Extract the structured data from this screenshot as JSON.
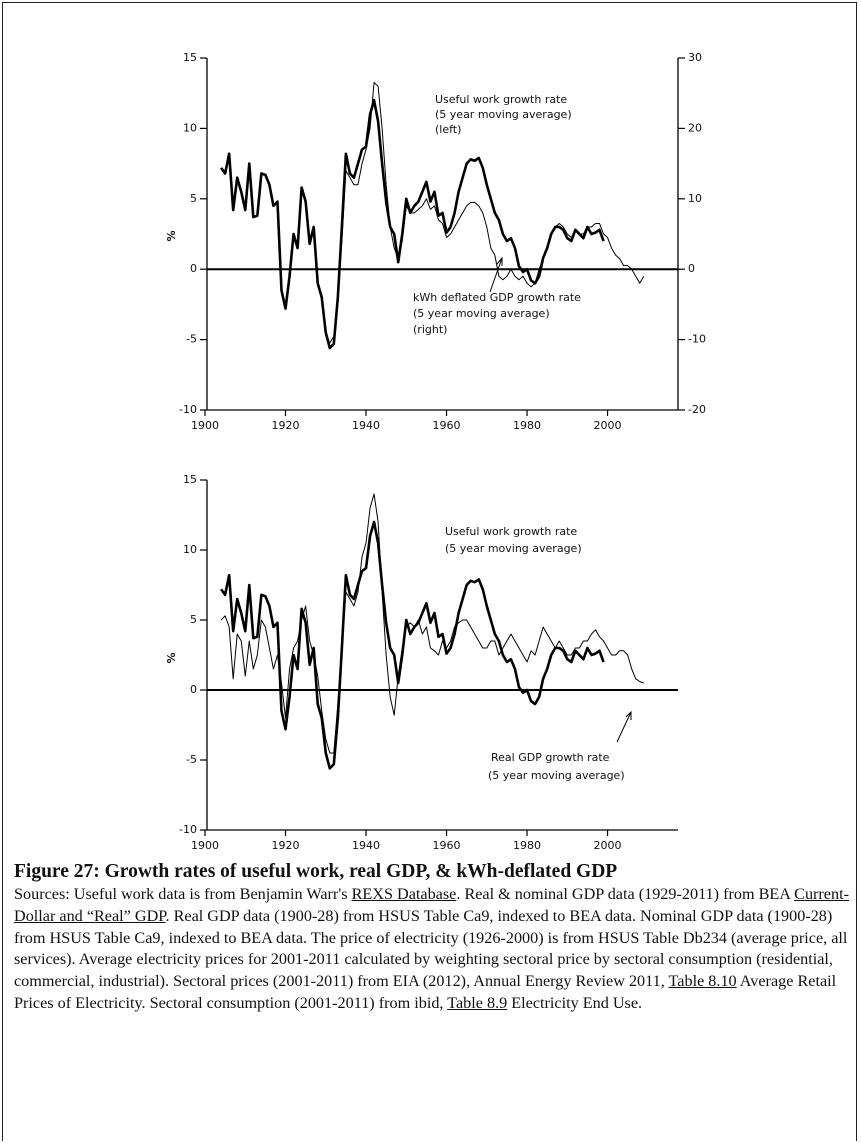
{
  "chart_data": [
    {
      "type": "line",
      "ylabel": "%",
      "xlim": [
        1900,
        2017.5
      ],
      "xticks": [
        1900,
        1920,
        1940,
        1960,
        1980,
        2000
      ],
      "ylim": [
        -10,
        15
      ],
      "yticks": [
        -10,
        -5,
        0,
        5,
        10,
        15
      ],
      "y2lim": [
        -20,
        30
      ],
      "y2ticks": [
        -20,
        -10,
        0,
        10,
        20,
        30
      ],
      "hline": 0,
      "x": [
        1904,
        1905,
        1906,
        1907,
        1908,
        1909,
        1910,
        1911,
        1912,
        1913,
        1914,
        1915,
        1916,
        1917,
        1918,
        1919,
        1920,
        1921,
        1922,
        1923,
        1924,
        1925,
        1926,
        1927,
        1928,
        1929,
        1930,
        1931,
        1932,
        1933,
        1934,
        1935,
        1936,
        1937,
        1938,
        1939,
        1940,
        1941,
        1942,
        1943,
        1944,
        1945,
        1946,
        1947,
        1948,
        1949,
        1950,
        1951,
        1952,
        1953,
        1954,
        1955,
        1956,
        1957,
        1958,
        1959,
        1960,
        1961,
        1962,
        1963,
        1964,
        1965,
        1966,
        1967,
        1968,
        1969,
        1970,
        1971,
        1972,
        1973,
        1974,
        1975,
        1976,
        1977,
        1978,
        1979,
        1980,
        1981,
        1982,
        1983,
        1984,
        1985,
        1986,
        1987,
        1988,
        1989,
        1990,
        1991,
        1992,
        1993,
        1994,
        1995,
        1996,
        1997,
        1998,
        1999,
        2000,
        2001,
        2002,
        2003,
        2004,
        2005,
        2006,
        2007,
        2008,
        2009
      ],
      "series": [
        {
          "name": "Useful work growth rate",
          "color": "#000000",
          "linewidth": 2.6,
          "values": [
            7.2,
            6.8,
            8.2,
            4.2,
            6.5,
            5.5,
            4.2,
            7.5,
            3.7,
            3.8,
            6.8,
            6.7,
            6.0,
            4.5,
            4.8,
            -1.5,
            -2.8,
            -0.5,
            2.5,
            1.5,
            5.8,
            4.8,
            1.8,
            3.0,
            -1.0,
            -2.0,
            -4.5,
            -5.6,
            -5.3,
            -2.0,
            3.0,
            8.2,
            6.8,
            6.5,
            7.5,
            8.5,
            8.7,
            11.0,
            12.0,
            10.5,
            7.5,
            4.8,
            3.0,
            2.5,
            0.5,
            2.5,
            5.0,
            4.0,
            4.5,
            4.8,
            5.5,
            6.2,
            4.8,
            5.5,
            3.8,
            4.0,
            2.6,
            3.0,
            4.0,
            5.5,
            6.5,
            7.5,
            7.8,
            7.7,
            7.9,
            7.2,
            6.0,
            5.0,
            4.0,
            3.5,
            2.5,
            2.0,
            2.2,
            1.5,
            0.2,
            -0.2,
            0.0,
            -0.8,
            -1.0,
            -0.5,
            0.8,
            1.5,
            2.5,
            3.0,
            3.0,
            2.8,
            2.2,
            2.0,
            2.8,
            2.5,
            2.2,
            3.0,
            2.5,
            2.6,
            2.8,
            2.0,
            null,
            null,
            null,
            null,
            null,
            null,
            null,
            null,
            null,
            null
          ]
        },
        {
          "name": "kWh deflated GDP growth rate",
          "color": "#000000",
          "linewidth": 1,
          "axis": "y2",
          "values": [
            null,
            null,
            null,
            null,
            null,
            null,
            null,
            null,
            null,
            null,
            null,
            null,
            null,
            null,
            null,
            null,
            null,
            null,
            null,
            null,
            null,
            null,
            null,
            null,
            null,
            -4,
            -9,
            -10.5,
            -9.5,
            -4,
            4,
            14,
            13,
            12,
            12,
            15,
            17,
            20,
            26.5,
            26,
            20,
            12,
            6,
            3,
            1.5,
            4,
            9,
            8,
            8,
            8.5,
            9,
            10,
            8.5,
            9,
            7,
            6.5,
            4.5,
            5,
            6,
            7,
            8,
            9,
            9.5,
            9.5,
            9,
            8,
            6,
            3,
            2,
            -1,
            -1.5,
            -1,
            0,
            -1,
            -1.5,
            -1,
            -2,
            -2.5,
            -2,
            0,
            1.5,
            3,
            5,
            6,
            6.5,
            6,
            5,
            4.5,
            5.5,
            5,
            5,
            6,
            6,
            6.5,
            6.5,
            5,
            4.5,
            3,
            2,
            1.5,
            0.5,
            0.5,
            0,
            -1,
            -2,
            -1
          ]
        }
      ],
      "annotations": [
        "(5 year moving average)",
        "(left)",
        "(5 year moving average)",
        "(right)"
      ]
    },
    {
      "type": "line",
      "ylabel": "%",
      "xlim": [
        1900,
        2017.5
      ],
      "xticks": [
        1900,
        1920,
        1940,
        1960,
        1980,
        2000
      ],
      "ylim": [
        -10,
        15
      ],
      "yticks": [
        -10,
        -5,
        0,
        5,
        10,
        15
      ],
      "hline": 0,
      "x": [
        1904,
        1905,
        1906,
        1907,
        1908,
        1909,
        1910,
        1911,
        1912,
        1913,
        1914,
        1915,
        1916,
        1917,
        1918,
        1919,
        1920,
        1921,
        1922,
        1923,
        1924,
        1925,
        1926,
        1927,
        1928,
        1929,
        1930,
        1931,
        1932,
        1933,
        1934,
        1935,
        1936,
        1937,
        1938,
        1939,
        1940,
        1941,
        1942,
        1943,
        1944,
        1945,
        1946,
        1947,
        1948,
        1949,
        1950,
        1951,
        1952,
        1953,
        1954,
        1955,
        1956,
        1957,
        1958,
        1959,
        1960,
        1961,
        1962,
        1963,
        1964,
        1965,
        1966,
        1967,
        1968,
        1969,
        1970,
        1971,
        1972,
        1973,
        1974,
        1975,
        1976,
        1977,
        1978,
        1979,
        1980,
        1981,
        1982,
        1983,
        1984,
        1985,
        1986,
        1987,
        1988,
        1989,
        1990,
        1991,
        1992,
        1993,
        1994,
        1995,
        1996,
        1997,
        1998,
        1999,
        2000,
        2001,
        2002,
        2003,
        2004,
        2005,
        2006,
        2007,
        2008,
        2009
      ],
      "series": [
        {
          "name": "Useful work growth rate",
          "color": "#000000",
          "linewidth": 2.6,
          "values": [
            7.2,
            6.8,
            8.2,
            4.2,
            6.5,
            5.5,
            4.2,
            7.5,
            3.7,
            3.8,
            6.8,
            6.7,
            6.0,
            4.5,
            4.8,
            -1.5,
            -2.8,
            -0.5,
            2.5,
            1.5,
            5.8,
            4.8,
            1.8,
            3.0,
            -1.0,
            -2.0,
            -4.5,
            -5.6,
            -5.3,
            -2.0,
            3.0,
            8.2,
            6.8,
            6.5,
            7.5,
            8.5,
            8.7,
            11.0,
            12.0,
            10.5,
            7.5,
            4.8,
            3.0,
            2.5,
            0.5,
            2.5,
            5.0,
            4.0,
            4.5,
            4.8,
            5.5,
            6.2,
            4.8,
            5.5,
            3.8,
            4.0,
            2.6,
            3.0,
            4.0,
            5.5,
            6.5,
            7.5,
            7.8,
            7.7,
            7.9,
            7.2,
            6.0,
            5.0,
            4.0,
            3.5,
            2.5,
            2.0,
            2.2,
            1.5,
            0.2,
            -0.2,
            0.0,
            -0.8,
            -1.0,
            -0.5,
            0.8,
            1.5,
            2.5,
            3.0,
            3.0,
            2.8,
            2.2,
            2.0,
            2.8,
            2.5,
            2.2,
            3.0,
            2.5,
            2.6,
            2.8,
            2.0,
            null,
            null,
            null,
            null,
            null,
            null,
            null,
            null,
            null,
            null
          ]
        },
        {
          "name": "Real GDP growth rate",
          "color": "#000000",
          "linewidth": 1,
          "values": [
            5.0,
            5.3,
            4.5,
            0.8,
            4.0,
            3.5,
            1.0,
            3.5,
            1.5,
            2.5,
            5.0,
            4.5,
            3.0,
            1.5,
            2.5,
            0.5,
            -2.0,
            1.5,
            3.0,
            3.5,
            5.0,
            6.0,
            3.5,
            2.5,
            1.0,
            -1.5,
            -3.5,
            -4.5,
            -4.5,
            -1.0,
            3.0,
            7.0,
            6.5,
            6.0,
            7.0,
            9.5,
            10.5,
            13.0,
            14.0,
            12.0,
            7.0,
            2.5,
            -0.5,
            -1.8,
            1.0,
            3.0,
            4.5,
            4.8,
            4.5,
            5.0,
            4.0,
            4.5,
            3.0,
            2.8,
            2.5,
            3.5,
            3.0,
            3.5,
            4.5,
            4.8,
            5.0,
            5.0,
            4.5,
            4.0,
            3.5,
            3.0,
            3.0,
            3.5,
            3.5,
            2.5,
            3.0,
            3.5,
            4.0,
            3.5,
            3.0,
            2.5,
            2.0,
            2.8,
            2.5,
            3.5,
            4.5,
            4.0,
            3.5,
            3.0,
            3.5,
            3.0,
            2.5,
            2.5,
            3.0,
            3.0,
            3.5,
            3.5,
            4.0,
            4.3,
            3.8,
            3.5,
            3.0,
            2.5,
            2.5,
            2.8,
            2.8,
            2.5,
            1.5,
            0.8,
            0.6,
            0.5
          ]
        }
      ],
      "annotations": [
        "(5 year moving average)",
        "(5 year moving average)"
      ]
    }
  ],
  "caption": {
    "title": "Figure 27: Growth rates of useful work, real GDP, & kWh-deflated GDP",
    "sources": [
      {
        "text": "Sources: Useful work data is from Benjamin Warr's "
      },
      {
        "link": "REXS Database"
      },
      {
        "text": ". Real & nominal GDP data (1929-2011) from BEA "
      },
      {
        "link": "Current-Dollar and “Real” GDP"
      },
      {
        "text": ". Real GDP data (1900-28) from HSUS Table Ca9, indexed to BEA data. Nominal GDP data (1900-28) from HSUS Table Ca9, indexed to BEA data. The price of electricity (1926-2000) is from HSUS Table Db234 (average price, all services). Average electricity prices for 2001-2011 calculated by weighting sectoral price by sectoral consumption (residential, commercial, industrial). Sectoral prices (2001-2011) from EIA  (2012), Annual Energy Review 2011, "
      },
      {
        "link": "Table 8.10"
      },
      {
        "text": " Average Retail Prices of Electricity. Sectoral consumption (2001-2011) from ibid, "
      },
      {
        "link": "Table 8.9"
      },
      {
        "text": " Electricity End Use."
      }
    ]
  }
}
